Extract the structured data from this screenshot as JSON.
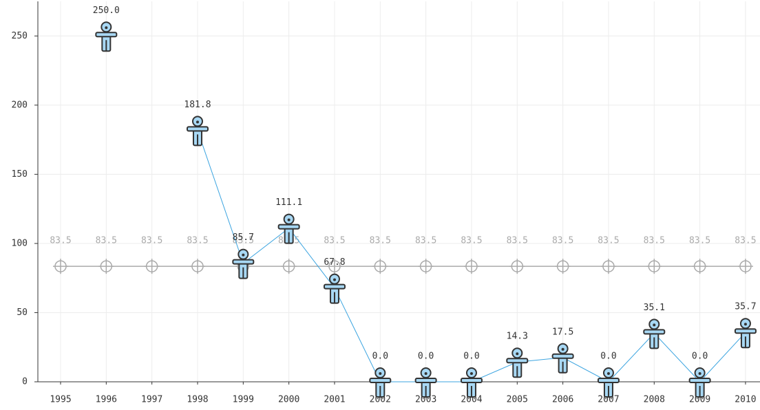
{
  "chart_data": {
    "type": "line",
    "categories": [
      "1995",
      "1996",
      "1997",
      "1998",
      "1999",
      "2000",
      "2001",
      "2002",
      "2003",
      "2004",
      "2005",
      "2006",
      "2007",
      "2008",
      "2009",
      "2010"
    ],
    "series": [
      {
        "color": "#3ba4e0",
        "values": [
          null,
          250,
          null,
          181.8,
          85.7,
          111.1,
          67.8,
          0,
          0,
          0,
          14.3,
          17.5,
          0,
          35.1,
          0,
          35.7
        ],
        "value_labels": [
          null,
          "250.0",
          null,
          "181.8",
          "85.7",
          "111.1",
          "67.8",
          "0.0",
          "0.0",
          "0.0",
          "14.3",
          "17.5",
          "0.0",
          "35.1",
          "0.0",
          "35.7"
        ]
      },
      {
        "color": "#aaaaaa",
        "values": [
          83.5,
          83.5,
          83.5,
          83.5,
          83.5,
          83.5,
          83.5,
          83.5,
          83.5,
          83.5,
          83.5,
          83.5,
          83.5,
          83.5,
          83.5,
          83.5
        ]
      }
    ],
    "ylim": [
      0,
      275
    ],
    "yticks": [
      0,
      50,
      100,
      150,
      200,
      250
    ],
    "grid": true
  }
}
